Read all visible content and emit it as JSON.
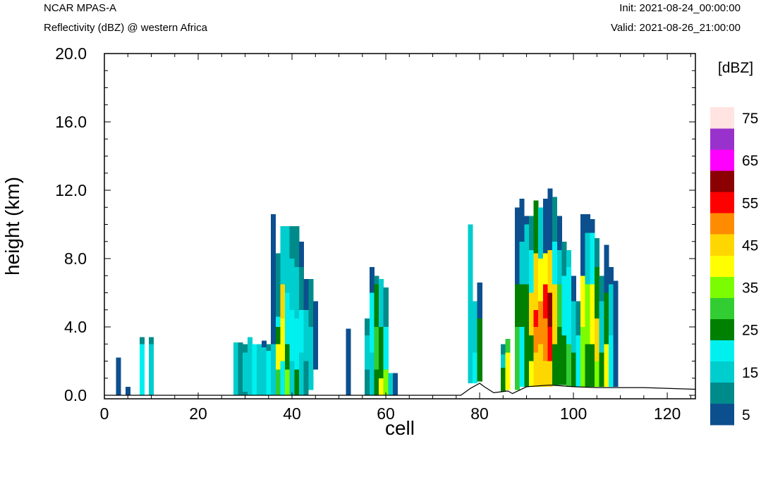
{
  "header": {
    "title": "NCAR MPAS-A",
    "subtitle": "Reflectivity (dBZ) @ western Africa",
    "init": "Init: 2021-08-24_00:00:00",
    "valid": "Valid: 2021-08-26_21:00:00"
  },
  "chart_data": {
    "type": "heatmap",
    "title": "NCAR MPAS-A",
    "subtitle": "Reflectivity (dBZ) @ western Africa",
    "xlabel": "cell",
    "ylabel": "height (km)",
    "xlim": [
      0,
      126
    ],
    "ylim": [
      0,
      20
    ],
    "x_ticks": [
      0,
      20,
      40,
      60,
      80,
      100,
      120
    ],
    "y_ticks": [
      0.0,
      4.0,
      8.0,
      12.0,
      16.0,
      20.0
    ],
    "y_tick_labels": [
      "0.0",
      "4.0",
      "8.0",
      "12.0",
      "16.0",
      "20.0"
    ],
    "colorbar": {
      "unit": "[dBZ]",
      "levels": [
        5,
        10,
        15,
        20,
        25,
        30,
        35,
        40,
        45,
        50,
        55,
        60,
        65,
        70,
        75
      ],
      "labels": [
        "5",
        "15",
        "25",
        "35",
        "45",
        "55",
        "65",
        "75"
      ],
      "colors": [
        "#0c4f8e",
        "#008b8b",
        "#00cdcd",
        "#00f0f0",
        "#008000",
        "#32cd32",
        "#7cfc00",
        "#ffff00",
        "#ffd700",
        "#ff8c00",
        "#ff0000",
        "#8b0000",
        "#ff00ff",
        "#9932cc",
        "#ffe4e1"
      ]
    },
    "terrain": [
      [
        0,
        0.0
      ],
      [
        76,
        0.0
      ],
      [
        78,
        0.4
      ],
      [
        80,
        0.7
      ],
      [
        81,
        0.5
      ],
      [
        83,
        0.15
      ],
      [
        86,
        0.25
      ],
      [
        87,
        0.1
      ],
      [
        90,
        0.5
      ],
      [
        95,
        0.6
      ],
      [
        100,
        0.5
      ],
      [
        105,
        0.45
      ],
      [
        115,
        0.45
      ],
      [
        126,
        0.35
      ]
    ],
    "columns": [
      {
        "x": 3,
        "segments": [
          [
            0,
            2.2,
            5
          ]
        ]
      },
      {
        "x": 5,
        "segments": [
          [
            0,
            0.5,
            5
          ]
        ]
      },
      {
        "x": 8,
        "segments": [
          [
            0,
            3.0,
            20
          ],
          [
            3.0,
            3.4,
            10
          ]
        ]
      },
      {
        "x": 10,
        "segments": [
          [
            0,
            3.0,
            15
          ],
          [
            3.0,
            3.4,
            10
          ]
        ]
      },
      {
        "x": 28,
        "segments": [
          [
            0,
            3.1,
            15
          ]
        ]
      },
      {
        "x": 29,
        "segments": [
          [
            0,
            3.1,
            10
          ]
        ]
      },
      {
        "x": 30,
        "segments": [
          [
            0,
            3.0,
            10
          ],
          [
            0.2,
            2.5,
            15
          ]
        ]
      },
      {
        "x": 31,
        "segments": [
          [
            0,
            3.4,
            15
          ]
        ]
      },
      {
        "x": 32,
        "segments": [
          [
            0,
            3.0,
            20
          ]
        ]
      },
      {
        "x": 33,
        "segments": [
          [
            0,
            3.0,
            15
          ]
        ]
      },
      {
        "x": 34,
        "segments": [
          [
            0,
            2.8,
            15
          ],
          [
            2.8,
            3.2,
            5
          ]
        ]
      },
      {
        "x": 35,
        "segments": [
          [
            0,
            2.6,
            20
          ],
          [
            2.6,
            3.0,
            10
          ]
        ]
      },
      {
        "x": 36,
        "segments": [
          [
            0,
            3.0,
            15
          ],
          [
            3.0,
            10.6,
            5
          ]
        ]
      },
      {
        "x": 37,
        "segments": [
          [
            0,
            1.5,
            30
          ],
          [
            1.5,
            3.0,
            40
          ],
          [
            3.0,
            4.0,
            25
          ],
          [
            4.0,
            4.6,
            20
          ],
          [
            4.6,
            8.3,
            10
          ]
        ]
      },
      {
        "x": 38,
        "segments": [
          [
            0,
            2.0,
            20
          ],
          [
            2.0,
            4.5,
            40
          ],
          [
            4.5,
            6.5,
            45
          ],
          [
            6.5,
            9.9,
            15
          ]
        ]
      },
      {
        "x": 39,
        "segments": [
          [
            0,
            1.5,
            35
          ],
          [
            1.5,
            3.0,
            25
          ],
          [
            3.0,
            6.0,
            20
          ],
          [
            6.0,
            9.9,
            15
          ]
        ]
      },
      {
        "x": 40,
        "segments": [
          [
            0,
            2.0,
            15
          ],
          [
            2.0,
            5.0,
            20
          ],
          [
            5.0,
            8.0,
            15
          ],
          [
            8.0,
            9.9,
            10
          ]
        ]
      },
      {
        "x": 41,
        "segments": [
          [
            0,
            1.5,
            25
          ],
          [
            1.5,
            4.5,
            20
          ],
          [
            4.5,
            7.5,
            15
          ],
          [
            7.5,
            9.9,
            10
          ]
        ]
      },
      {
        "x": 42,
        "segments": [
          [
            0,
            2.5,
            15
          ],
          [
            2.5,
            5.0,
            20
          ],
          [
            5.0,
            7.5,
            10
          ],
          [
            7.5,
            9.0,
            5
          ]
        ]
      },
      {
        "x": 43,
        "segments": [
          [
            0,
            2.0,
            10
          ],
          [
            2.0,
            5.0,
            15
          ],
          [
            5.0,
            6.8,
            5
          ]
        ]
      },
      {
        "x": 44,
        "segments": [
          [
            0.3,
            4.0,
            15
          ],
          [
            4.0,
            6.8,
            10
          ]
        ]
      },
      {
        "x": 45,
        "segments": [
          [
            1.5,
            5.5,
            5
          ]
        ]
      },
      {
        "x": 52,
        "segments": [
          [
            0,
            3.9,
            5
          ]
        ]
      },
      {
        "x": 56,
        "segments": [
          [
            0,
            4.5,
            10
          ],
          [
            1.5,
            3.5,
            15
          ]
        ]
      },
      {
        "x": 57,
        "segments": [
          [
            0,
            2.5,
            15
          ],
          [
            2.5,
            6.0,
            20
          ],
          [
            6.0,
            7.5,
            5
          ]
        ]
      },
      {
        "x": 58,
        "segments": [
          [
            0,
            1.5,
            25
          ],
          [
            1.5,
            4.0,
            30
          ],
          [
            4.0,
            6.5,
            25
          ],
          [
            6.5,
            7.0,
            10
          ]
        ]
      },
      {
        "x": 59,
        "segments": [
          [
            0,
            1.0,
            40
          ],
          [
            1.0,
            4.0,
            25
          ],
          [
            4.0,
            6.8,
            15
          ]
        ]
      },
      {
        "x": 60,
        "segments": [
          [
            0,
            1.5,
            35
          ],
          [
            1.5,
            4.0,
            20
          ],
          [
            4.0,
            6.3,
            10
          ]
        ]
      },
      {
        "x": 61,
        "segments": [
          [
            0,
            1.3,
            15
          ]
        ]
      },
      {
        "x": 62,
        "segments": [
          [
            0,
            1.3,
            5
          ]
        ]
      },
      {
        "x": 78,
        "segments": [
          [
            0.7,
            10.0,
            15
          ]
        ]
      },
      {
        "x": 79,
        "segments": [
          [
            0.7,
            2.5,
            20
          ],
          [
            2.5,
            5.5,
            15
          ]
        ]
      },
      {
        "x": 80,
        "segments": [
          [
            0.8,
            4.5,
            25
          ],
          [
            4.5,
            6.6,
            5
          ]
        ]
      },
      {
        "x": 85,
        "segments": [
          [
            0.2,
            1.6,
            25
          ],
          [
            1.6,
            2.4,
            15
          ],
          [
            2.4,
            3.0,
            10
          ]
        ]
      },
      {
        "x": 86,
        "segments": [
          [
            0.3,
            2.5,
            40
          ],
          [
            2.5,
            3.3,
            30
          ]
        ]
      },
      {
        "x": 88,
        "segments": [
          [
            0.3,
            4.0,
            30
          ],
          [
            4.0,
            6.5,
            25
          ],
          [
            6.5,
            11.0,
            5
          ]
        ]
      },
      {
        "x": 89,
        "segments": [
          [
            0.5,
            4.0,
            20
          ],
          [
            4.0,
            6.5,
            25
          ],
          [
            6.5,
            9.0,
            15
          ],
          [
            9.0,
            11.5,
            5
          ]
        ]
      },
      {
        "x": 90,
        "segments": [
          [
            0.5,
            3.0,
            25
          ],
          [
            3.0,
            6.5,
            25
          ],
          [
            6.5,
            10.0,
            15
          ],
          [
            10.0,
            10.5,
            5
          ]
        ]
      },
      {
        "x": 91,
        "segments": [
          [
            0.5,
            2.0,
            40
          ],
          [
            2.0,
            3.5,
            25
          ],
          [
            3.5,
            6.0,
            45
          ],
          [
            6.0,
            8.5,
            20
          ],
          [
            8.5,
            10.5,
            10
          ]
        ]
      },
      {
        "x": 92,
        "segments": [
          [
            0.5,
            2.5,
            45
          ],
          [
            2.5,
            4.0,
            50
          ],
          [
            4.0,
            5.0,
            55
          ],
          [
            5.0,
            8.3,
            45
          ],
          [
            8.3,
            11.4,
            25
          ]
        ]
      },
      {
        "x": 93,
        "segments": [
          [
            0.5,
            3.0,
            45
          ],
          [
            3.0,
            5.5,
            50
          ],
          [
            5.5,
            8.0,
            40
          ],
          [
            8.0,
            11.0,
            15
          ]
        ]
      },
      {
        "x": 94,
        "segments": [
          [
            0.5,
            2.0,
            45
          ],
          [
            2.0,
            4.5,
            50
          ],
          [
            4.5,
            6.5,
            55
          ],
          [
            6.5,
            8.3,
            40
          ],
          [
            8.3,
            11.5,
            5
          ]
        ]
      },
      {
        "x": 95,
        "segments": [
          [
            0.5,
            2.0,
            45
          ],
          [
            2.0,
            4.0,
            55
          ],
          [
            4.0,
            6.0,
            60
          ],
          [
            6.0,
            8.5,
            45
          ],
          [
            8.5,
            12.1,
            5
          ]
        ]
      },
      {
        "x": 96,
        "segments": [
          [
            0.6,
            3.0,
            25
          ],
          [
            3.0,
            6.5,
            45
          ],
          [
            6.5,
            9.0,
            20
          ],
          [
            9.0,
            11.6,
            10
          ]
        ]
      },
      {
        "x": 97,
        "segments": [
          [
            0.6,
            4.0,
            25
          ],
          [
            4.0,
            6.5,
            30
          ],
          [
            6.5,
            8.5,
            15
          ],
          [
            8.5,
            10.5,
            5
          ]
        ]
      },
      {
        "x": 98,
        "segments": [
          [
            0.6,
            3.5,
            25
          ],
          [
            3.5,
            7.0,
            20
          ],
          [
            7.0,
            9.0,
            10
          ]
        ]
      },
      {
        "x": 99,
        "segments": [
          [
            0.5,
            3.0,
            30
          ],
          [
            3.0,
            7.5,
            20
          ],
          [
            7.5,
            8.5,
            15
          ]
        ]
      },
      {
        "x": 100,
        "segments": [
          [
            0.5,
            2.5,
            25
          ],
          [
            2.5,
            5.5,
            15
          ],
          [
            5.5,
            7.0,
            5
          ]
        ]
      },
      {
        "x": 101,
        "segments": [
          [
            0.5,
            3.5,
            20
          ],
          [
            3.5,
            5.5,
            10
          ]
        ]
      },
      {
        "x": 102,
        "segments": [
          [
            0.5,
            4.0,
            35
          ],
          [
            4.0,
            7.0,
            40
          ],
          [
            7.0,
            10.6,
            5
          ]
        ]
      },
      {
        "x": 103,
        "segments": [
          [
            0.5,
            3.0,
            25
          ],
          [
            3.0,
            6.5,
            35
          ],
          [
            6.5,
            9.5,
            15
          ],
          [
            9.5,
            10.6,
            5
          ]
        ]
      },
      {
        "x": 104,
        "segments": [
          [
            0.5,
            3.0,
            25
          ],
          [
            3.0,
            6.5,
            40
          ],
          [
            6.5,
            9.5,
            20
          ],
          [
            9.5,
            10.3,
            5
          ]
        ]
      },
      {
        "x": 105,
        "segments": [
          [
            0.5,
            2.0,
            35
          ],
          [
            2.0,
            4.5,
            45
          ],
          [
            4.5,
            7.5,
            25
          ],
          [
            7.5,
            9.2,
            10
          ]
        ]
      },
      {
        "x": 106,
        "segments": [
          [
            0.5,
            2.5,
            25
          ],
          [
            2.5,
            5.5,
            15
          ],
          [
            5.5,
            7.0,
            10
          ]
        ]
      },
      {
        "x": 107,
        "segments": [
          [
            0.5,
            3.0,
            40
          ],
          [
            3.0,
            6.0,
            25
          ],
          [
            6.0,
            8.8,
            5
          ]
        ]
      },
      {
        "x": 108,
        "segments": [
          [
            0.5,
            3.5,
            20
          ],
          [
            3.5,
            6.5,
            15
          ],
          [
            6.5,
            7.5,
            5
          ]
        ]
      },
      {
        "x": 109,
        "segments": [
          [
            0.5,
            4.5,
            5
          ],
          [
            4.5,
            6.7,
            5
          ]
        ]
      }
    ]
  }
}
